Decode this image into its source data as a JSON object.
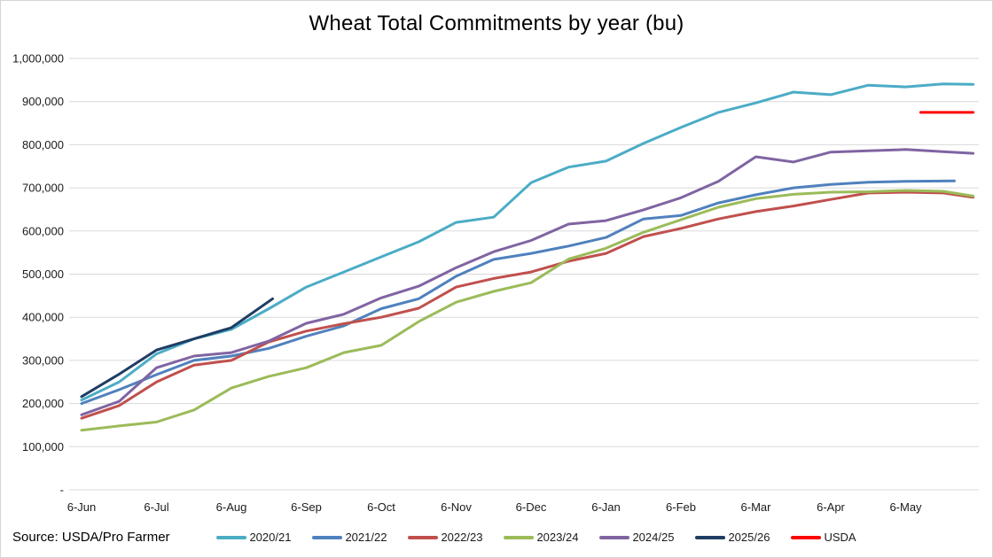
{
  "title": "Wheat Total Commitments by year (bu)",
  "source_note": "Source: USDA/Pro Farmer",
  "chart_data": {
    "type": "line",
    "title": "Wheat Total Commitments by year (bu)",
    "xlabel": "",
    "ylabel": "",
    "grid": true,
    "legend_position": "bottom",
    "x_unit": "months_after_6_jun",
    "x_tick_labels": [
      "6-Jun",
      "6-Jul",
      "6-Aug",
      "6-Sep",
      "6-Oct",
      "6-Nov",
      "6-Dec",
      "6-Jan",
      "6-Feb",
      "6-Mar",
      "6-Apr",
      "6-May"
    ],
    "y_axis": {
      "min": 0,
      "max": 1000000,
      "tick_step": 100000,
      "tick_labels": [
        "-",
        "100,000",
        "200,000",
        "300,000",
        "400,000",
        "500,000",
        "600,000",
        "700,000",
        "800,000",
        "900,000",
        "1,000,000"
      ]
    },
    "series": [
      {
        "name": "2020/21",
        "color": "#4BACC6",
        "x": [
          0,
          0.5,
          1,
          1.5,
          2,
          2.5,
          3,
          3.5,
          4,
          4.5,
          5,
          5.5,
          6,
          6.5,
          7,
          7.5,
          8,
          8.5,
          9,
          9.5,
          10,
          10.5,
          11,
          11.5,
          11.9
        ],
        "values": [
          208000,
          250000,
          315000,
          350000,
          372000,
          420000,
          470000,
          505000,
          540000,
          575000,
          620000,
          632000,
          712000,
          748000,
          762000,
          803000,
          840000,
          875000,
          897000,
          922000,
          916000,
          938000,
          934000,
          941000,
          940000
        ]
      },
      {
        "name": "2021/22",
        "color": "#4F81BD",
        "x": [
          0,
          0.5,
          1,
          1.5,
          2,
          2.5,
          3,
          3.5,
          4,
          4.5,
          5,
          5.5,
          6,
          6.5,
          7,
          7.5,
          8,
          8.5,
          9,
          9.5,
          10,
          10.5,
          11,
          11.65
        ],
        "values": [
          200000,
          232000,
          267000,
          300000,
          310000,
          328000,
          356000,
          380000,
          420000,
          443000,
          495000,
          534000,
          548000,
          565000,
          585000,
          628000,
          636000,
          665000,
          684000,
          700000,
          708000,
          713000,
          715000,
          716000
        ]
      },
      {
        "name": "2022/23",
        "color": "#C0504D",
        "x": [
          0,
          0.5,
          1,
          1.5,
          2,
          2.5,
          3,
          3.5,
          4,
          4.5,
          5,
          5.5,
          6,
          6.5,
          7,
          7.5,
          8,
          8.5,
          9,
          9.5,
          10,
          10.5,
          11,
          11.5,
          11.9
        ],
        "values": [
          166000,
          195000,
          250000,
          289000,
          300000,
          343000,
          368000,
          385000,
          400000,
          421000,
          470000,
          490000,
          505000,
          530000,
          548000,
          587000,
          606000,
          628000,
          645000,
          658000,
          673000,
          688000,
          690000,
          688000,
          678000
        ]
      },
      {
        "name": "2023/24",
        "color": "#9BBB59",
        "x": [
          0,
          0.5,
          1,
          1.5,
          2,
          2.5,
          3,
          3.5,
          4,
          4.5,
          5,
          5.5,
          6,
          6.5,
          7,
          7.5,
          8,
          8.5,
          9,
          9.5,
          10,
          10.5,
          11,
          11.5,
          11.9
        ],
        "values": [
          138000,
          148000,
          157000,
          185000,
          236000,
          263000,
          283000,
          318000,
          335000,
          390000,
          435000,
          460000,
          480000,
          535000,
          560000,
          597000,
          626000,
          655000,
          675000,
          685000,
          690000,
          691000,
          694000,
          692000,
          681000
        ]
      },
      {
        "name": "2024/25",
        "color": "#8064A2",
        "x": [
          0,
          0.5,
          1,
          1.5,
          2,
          2.5,
          3,
          3.5,
          4,
          4.5,
          5,
          5.5,
          6,
          6.5,
          7,
          7.5,
          8,
          8.5,
          9,
          9.5,
          10,
          10.5,
          11,
          11.5,
          11.9
        ],
        "values": [
          174000,
          205000,
          283000,
          310000,
          318000,
          345000,
          386000,
          407000,
          445000,
          472000,
          515000,
          552000,
          578000,
          616000,
          624000,
          649000,
          677000,
          715000,
          772000,
          760000,
          783000,
          786000,
          789000,
          784000,
          780000
        ]
      },
      {
        "name": "2025/26",
        "color": "#1F3D63",
        "x": [
          0,
          0.5,
          1,
          1.5,
          2,
          2.55
        ],
        "values": [
          216000,
          268000,
          324000,
          350000,
          376000,
          443000
        ]
      },
      {
        "name": "USDA",
        "color": "#FF0000",
        "x": [
          11.2,
          11.9
        ],
        "values": [
          875000,
          875000
        ]
      }
    ]
  }
}
